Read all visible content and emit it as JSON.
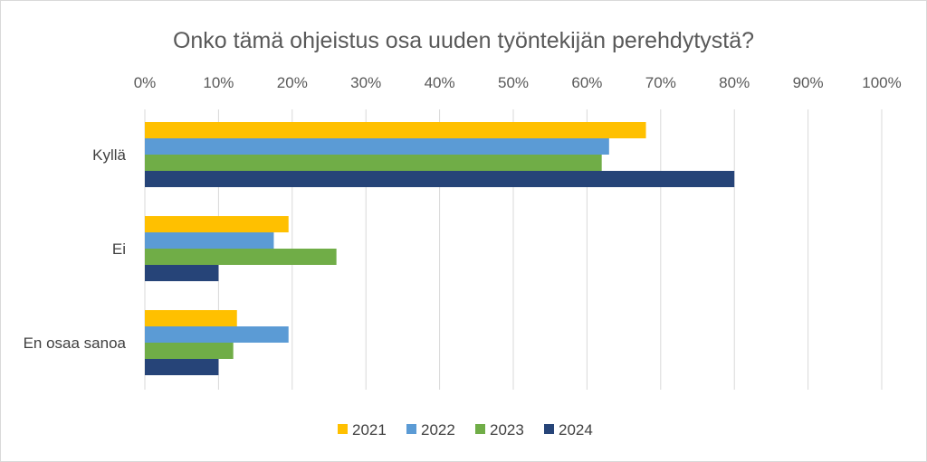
{
  "chart_data": {
    "type": "bar",
    "orientation": "horizontal",
    "title": "Onko tämä ohjeistus osa uuden työntekijän perehdytystä?",
    "xlabel": "",
    "ylabel": "",
    "xlim": [
      0,
      100
    ],
    "x_ticks": [
      "0%",
      "10%",
      "20%",
      "30%",
      "40%",
      "50%",
      "60%",
      "70%",
      "80%",
      "90%",
      "100%"
    ],
    "grid": true,
    "legend_position": "bottom",
    "categories": [
      "Kyllä",
      "Ei",
      "En osaa sanoa"
    ],
    "series": [
      {
        "name": "2021",
        "color": "#FFC000",
        "values": [
          68,
          19.5,
          12.5
        ]
      },
      {
        "name": "2022",
        "color": "#5B9BD5",
        "values": [
          63,
          17.5,
          19.5
        ]
      },
      {
        "name": "2023",
        "color": "#70AD47",
        "values": [
          62,
          26,
          12
        ]
      },
      {
        "name": "2024",
        "color": "#264478",
        "values": [
          80,
          10,
          10
        ]
      }
    ]
  }
}
